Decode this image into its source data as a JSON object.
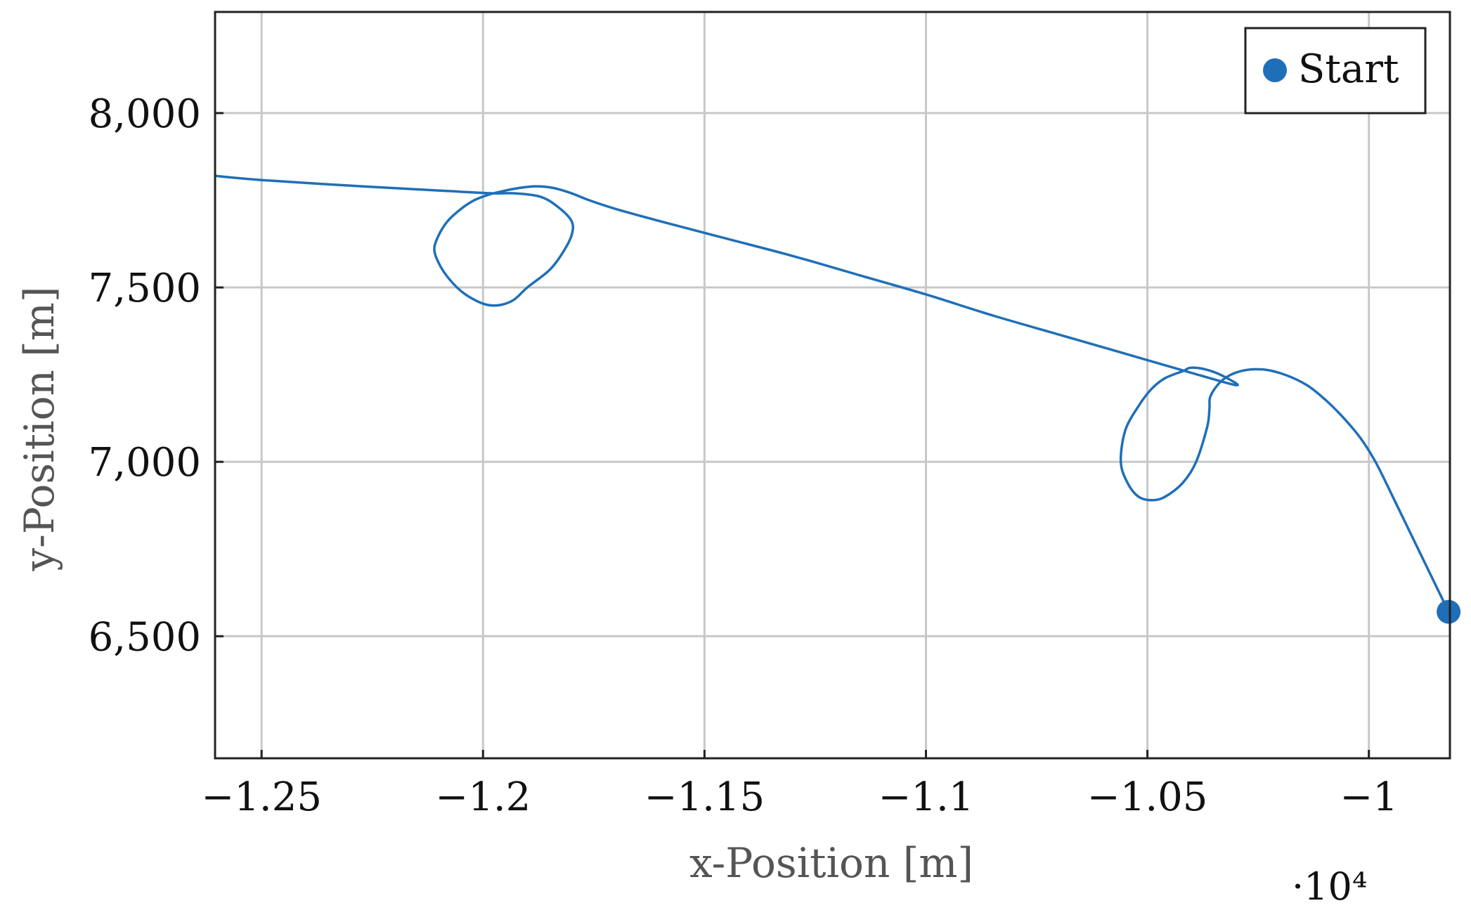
{
  "chart_data": {
    "type": "line",
    "xlabel": "x-Position [m]",
    "ylabel": "y-Position [m]",
    "x_multiplier_label": "·10⁴",
    "xlim": [
      -12.605,
      -9.817
    ],
    "ylim": [
      6150,
      8290
    ],
    "x_ticks": [
      {
        "value": -12.5,
        "label": "−1.25"
      },
      {
        "value": -12.0,
        "label": "−1.2"
      },
      {
        "value": -11.5,
        "label": "−1.15"
      },
      {
        "value": -11.0,
        "label": "−1.1"
      },
      {
        "value": -10.5,
        "label": "−1.05"
      },
      {
        "value": -10.0,
        "label": "−1"
      }
    ],
    "y_ticks": [
      {
        "value": 6500,
        "label": "6,500"
      },
      {
        "value": 7000,
        "label": "7,000"
      },
      {
        "value": 7500,
        "label": "7,500"
      },
      {
        "value": 8000,
        "label": "8,000"
      }
    ],
    "grid": true,
    "legend": {
      "position": "top-right",
      "entries": [
        {
          "label": "Start",
          "marker": "circle"
        }
      ]
    },
    "colors": {
      "series": "#1f6fb8",
      "grid": "#c8c8c8",
      "axis": "#222222"
    },
    "series": [
      {
        "x": [
          -9.82,
          -9.862,
          -9.904,
          -9.946,
          -9.985,
          -10.02,
          -10.06,
          -10.1,
          -10.14,
          -10.19,
          -10.24,
          -10.29,
          -10.33,
          -10.357,
          -10.36,
          -10.365,
          -10.39,
          -10.42,
          -10.46,
          -10.49,
          -10.52,
          -10.545,
          -10.56,
          -10.55,
          -10.52,
          -10.49,
          -10.46,
          -10.42,
          -10.4,
          -10.36,
          -10.32,
          -10.3,
          -10.4,
          -10.55,
          -10.7,
          -10.85,
          -11.0,
          -11.15,
          -11.3,
          -11.45,
          -11.6,
          -11.7,
          -11.76,
          -11.8,
          -11.84,
          -11.88,
          -11.92,
          -11.96,
          -11.99,
          -12.02,
          -12.05,
          -12.08,
          -12.1,
          -12.11,
          -12.1,
          -12.08,
          -12.05,
          -12.02,
          -11.99,
          -11.96,
          -11.93,
          -11.9,
          -11.85,
          -11.82,
          -11.8,
          -11.8,
          -11.83,
          -11.87,
          -11.93,
          -11.98,
          -12.1,
          -12.3,
          -12.5,
          -12.605
        ],
        "y": [
          6570,
          6680,
          6790,
          6900,
          7000,
          7070,
          7130,
          7180,
          7220,
          7250,
          7265,
          7260,
          7235,
          7190,
          7150,
          7100,
          7000,
          6940,
          6900,
          6890,
          6900,
          6940,
          7000,
          7090,
          7160,
          7210,
          7240,
          7260,
          7270,
          7262,
          7240,
          7220,
          7255,
          7310,
          7365,
          7420,
          7480,
          7535,
          7590,
          7640,
          7690,
          7725,
          7750,
          7770,
          7785,
          7790,
          7785,
          7775,
          7765,
          7750,
          7725,
          7690,
          7650,
          7610,
          7570,
          7530,
          7490,
          7465,
          7450,
          7450,
          7465,
          7500,
          7550,
          7600,
          7650,
          7690,
          7730,
          7760,
          7770,
          7770,
          7778,
          7792,
          7808,
          7820
        ]
      }
    ],
    "start_point": {
      "x": -9.82,
      "y": 6570
    }
  }
}
